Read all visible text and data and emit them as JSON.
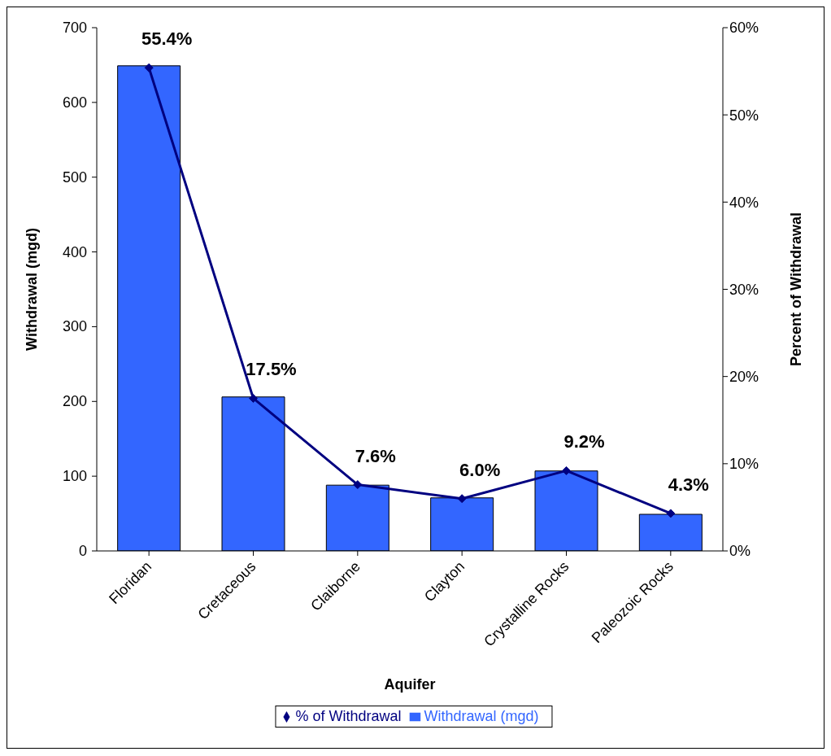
{
  "chart_data": {
    "type": "bar",
    "xlabel": "Aquifer",
    "ylabel": "Withdrawal (mgd)",
    "y2label": "Percent of Withdrawal",
    "categories": [
      "Floridan",
      "Cretaceous",
      "Claiborne",
      "Clayton",
      "Crystalline Rocks",
      "Paleozoic Rocks"
    ],
    "series": [
      {
        "name": "Withdrawal (mgd)",
        "color": "#3366ff",
        "values": [
          649,
          206,
          88,
          71,
          107,
          49
        ]
      },
      {
        "name": "% of Withdrawal",
        "type": "line",
        "axis": "y2",
        "color": "#000080",
        "marker": "diamond",
        "values": [
          55.4,
          17.5,
          7.6,
          6.0,
          9.2,
          4.3
        ],
        "value_labels": [
          "55.4%",
          "17.5%",
          "7.6%",
          "6.0%",
          "9.2%",
          "4.3%"
        ]
      }
    ],
    "ylim": [
      0,
      700
    ],
    "yticks": [
      0,
      100,
      200,
      300,
      400,
      500,
      600,
      700
    ],
    "y2lim": [
      0,
      60
    ],
    "y2ticks": [
      {
        "value": 0,
        "label": "0%"
      },
      {
        "value": 10,
        "label": "10%"
      },
      {
        "value": 20,
        "label": "20%"
      },
      {
        "value": 30,
        "label": "30%"
      },
      {
        "value": 40,
        "label": "40%"
      },
      {
        "value": 50,
        "label": "50%"
      },
      {
        "value": 60,
        "label": "60%"
      }
    ],
    "grid": false,
    "legend": "bottom"
  }
}
